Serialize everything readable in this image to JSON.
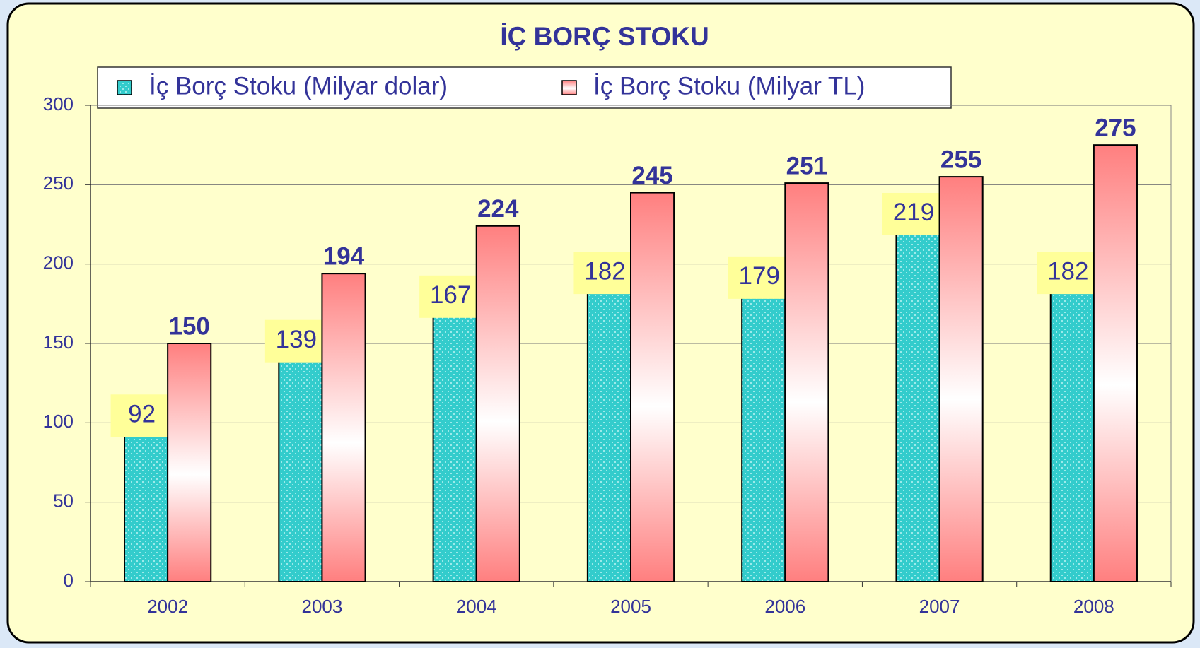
{
  "chart_data": {
    "type": "bar",
    "title": "İÇ BORÇ STOKU",
    "categories": [
      "2002",
      "2003",
      "2004",
      "2005",
      "2006",
      "2007",
      "2008"
    ],
    "series": [
      {
        "name": "İç Borç Stoku (Milyar dolar)",
        "color": "#33cccc",
        "values": [
          92,
          139,
          167,
          182,
          179,
          219,
          182
        ]
      },
      {
        "name": "İç Borç Stoku (Milyar TL)",
        "color": "#ff7f7f",
        "values": [
          150,
          194,
          224,
          245,
          251,
          255,
          275
        ]
      }
    ],
    "ylim": [
      0,
      300
    ],
    "yticks": [
      0,
      50,
      100,
      150,
      200,
      250,
      300
    ],
    "grid": true,
    "legend": "top"
  }
}
